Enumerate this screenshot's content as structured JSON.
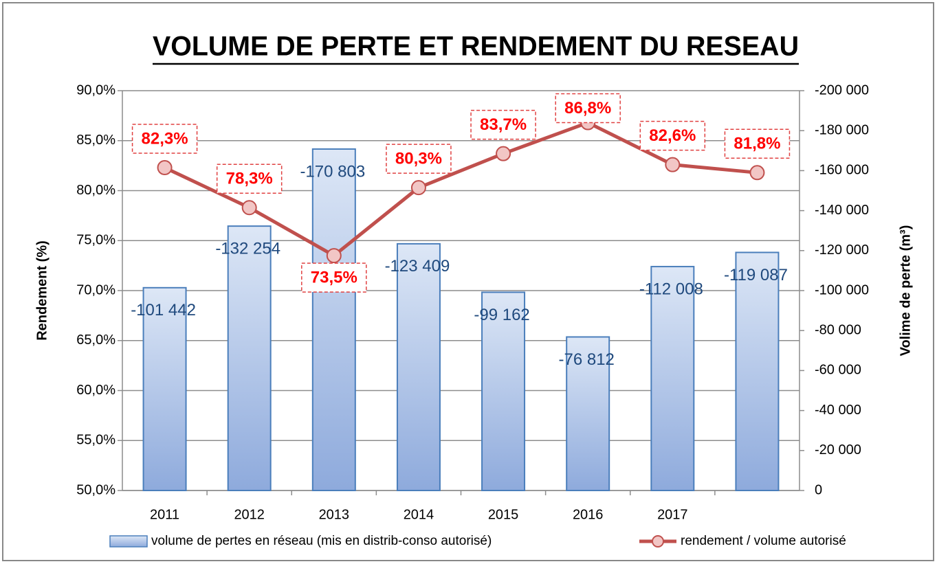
{
  "chart_data": {
    "type": "bar+line",
    "title": "VOLUME DE PERTE ET RENDEMENT DU RESEAU",
    "y_label": "Rendement (%)",
    "y2_label": "Volime de perte (m³)",
    "categories": [
      "2011",
      "2012",
      "2013",
      "2014",
      "2015",
      "2016",
      "2017",
      null
    ],
    "series": [
      {
        "name": "volume de pertes en réseau (mis en distrib-conso autorisé)",
        "type": "bar",
        "axis": "y2",
        "color": "#4a7ebb",
        "values": [
          -101442,
          -132254,
          -170803,
          -123409,
          -99162,
          -76812,
          -112008,
          -119087
        ],
        "value_labels": [
          "-101 442",
          "-132 254",
          "-170 803",
          "-123 409",
          "-99 162",
          "-76 812",
          "-112 008",
          "-119 087"
        ]
      },
      {
        "name": "rendement / volume autorisé",
        "type": "line",
        "axis": "y",
        "color": "#c0504d",
        "values": [
          82.3,
          78.3,
          73.5,
          80.3,
          83.7,
          86.8,
          82.6,
          81.8
        ],
        "value_labels": [
          "82,3%",
          "78,3%",
          "73,5%",
          "80,3%",
          "83,7%",
          "86,8%",
          "82,6%",
          "81,8%"
        ]
      }
    ],
    "ylim": [
      50,
      90
    ],
    "yticks": [
      {
        "value": 50,
        "label": "50,0%"
      },
      {
        "value": 55,
        "label": "55,0%"
      },
      {
        "value": 60,
        "label": "60,0%"
      },
      {
        "value": 65,
        "label": "65,0%"
      },
      {
        "value": 70,
        "label": "70,0%"
      },
      {
        "value": 75,
        "label": "75,0%"
      },
      {
        "value": 80,
        "label": "80,0%"
      },
      {
        "value": 85,
        "label": "85,0%"
      },
      {
        "value": 90,
        "label": "90,0%"
      }
    ],
    "y2lim": [
      0,
      -200000
    ],
    "y2ticks": [
      0,
      {
        "value": -20000,
        "label": "-20 000"
      },
      {
        "value": -40000,
        "label": "-40 000"
      },
      {
        "value": -60000,
        "label": "-60 000"
      },
      {
        "value": -80000,
        "label": "-80 000"
      },
      {
        "value": -100000,
        "label": "-100 000"
      },
      {
        "value": -120000,
        "label": "-120 000"
      },
      {
        "value": -140000,
        "label": "-140 000"
      },
      {
        "value": -160000,
        "label": "-160 000"
      },
      {
        "value": -180000,
        "label": "-180 000"
      },
      {
        "value": -200000,
        "label": "-200 000"
      }
    ],
    "grid": true,
    "legend": "bottom"
  }
}
